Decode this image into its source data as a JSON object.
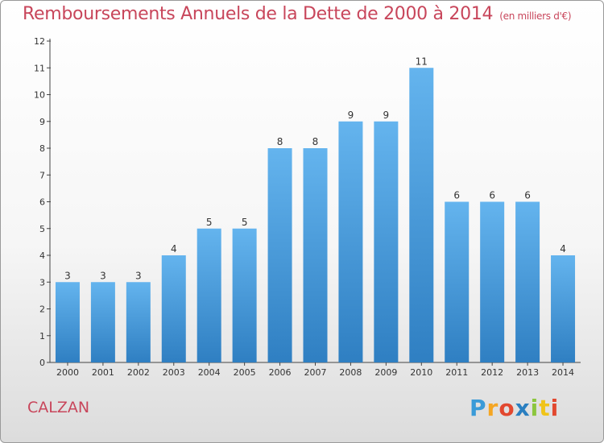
{
  "title": "Remboursements Annuels de la Dette de 2000 à 2014",
  "subtitle": "(en milliers d'€)",
  "commune": "CALZAN",
  "logo": [
    "P",
    "r",
    "o",
    "x",
    "i",
    "t",
    "i"
  ],
  "colors": {
    "title": "#c8465b",
    "bar_light": "#64b4ee",
    "bar_dark": "#2f86c8"
  },
  "chart_data": {
    "type": "bar",
    "title": "Remboursements Annuels de la Dette de 2000 à 2014",
    "subtitle": "(en milliers d'€)",
    "categories": [
      "2000",
      "2001",
      "2002",
      "2003",
      "2004",
      "2005",
      "2006",
      "2007",
      "2008",
      "2009",
      "2010",
      "2011",
      "2012",
      "2013",
      "2014"
    ],
    "values": [
      3,
      3,
      3,
      4,
      5,
      5,
      8,
      8,
      9,
      9,
      11,
      6,
      6,
      6,
      4
    ],
    "data_labels": [
      "3",
      "3",
      "3",
      "4",
      "5",
      "5",
      "8",
      "8",
      "9",
      "9",
      "11",
      "6",
      "6",
      "6",
      "4"
    ],
    "yticks": [
      "0",
      "1",
      "2",
      "3",
      "4",
      "5",
      "6",
      "7",
      "8",
      "9",
      "10",
      "11",
      "12"
    ],
    "ylim": [
      0,
      12
    ],
    "grid": false,
    "legend": "none"
  }
}
